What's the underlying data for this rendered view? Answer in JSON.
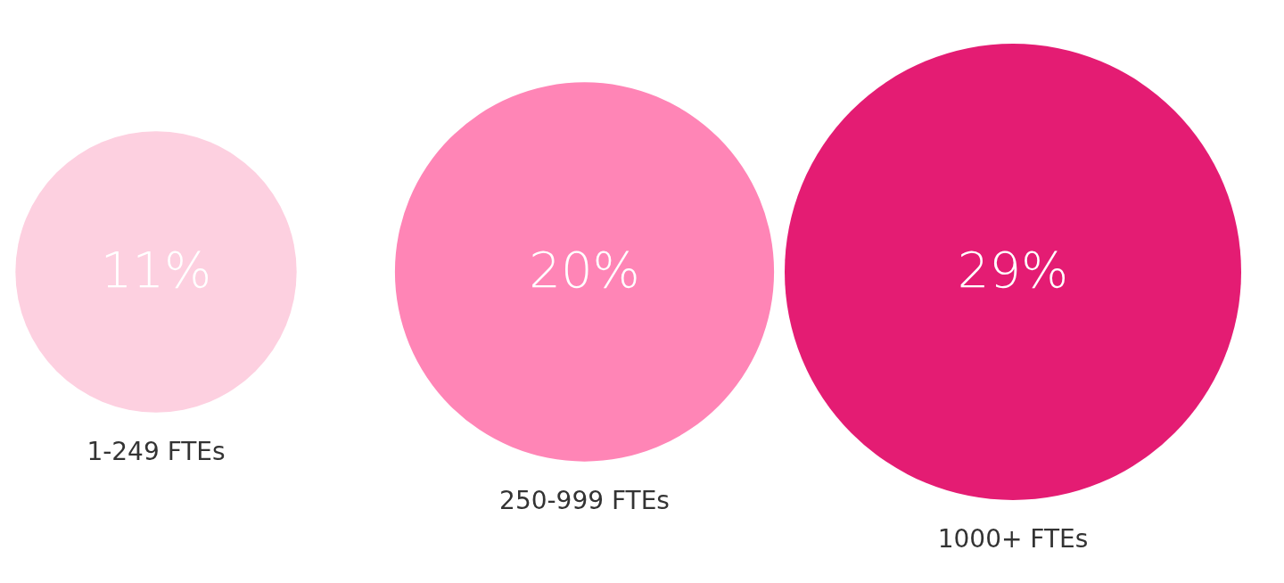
{
  "chart_data": {
    "type": "other",
    "categories": [
      "1-249 FTEs",
      "250-999 FTEs",
      "1000+ FTEs"
    ],
    "values": [
      11,
      20,
      29
    ],
    "colors": [
      "#fdd0e0",
      "#ff85b6",
      "#e41c73"
    ],
    "value_labels": [
      "11%",
      "20%",
      "29%"
    ]
  }
}
